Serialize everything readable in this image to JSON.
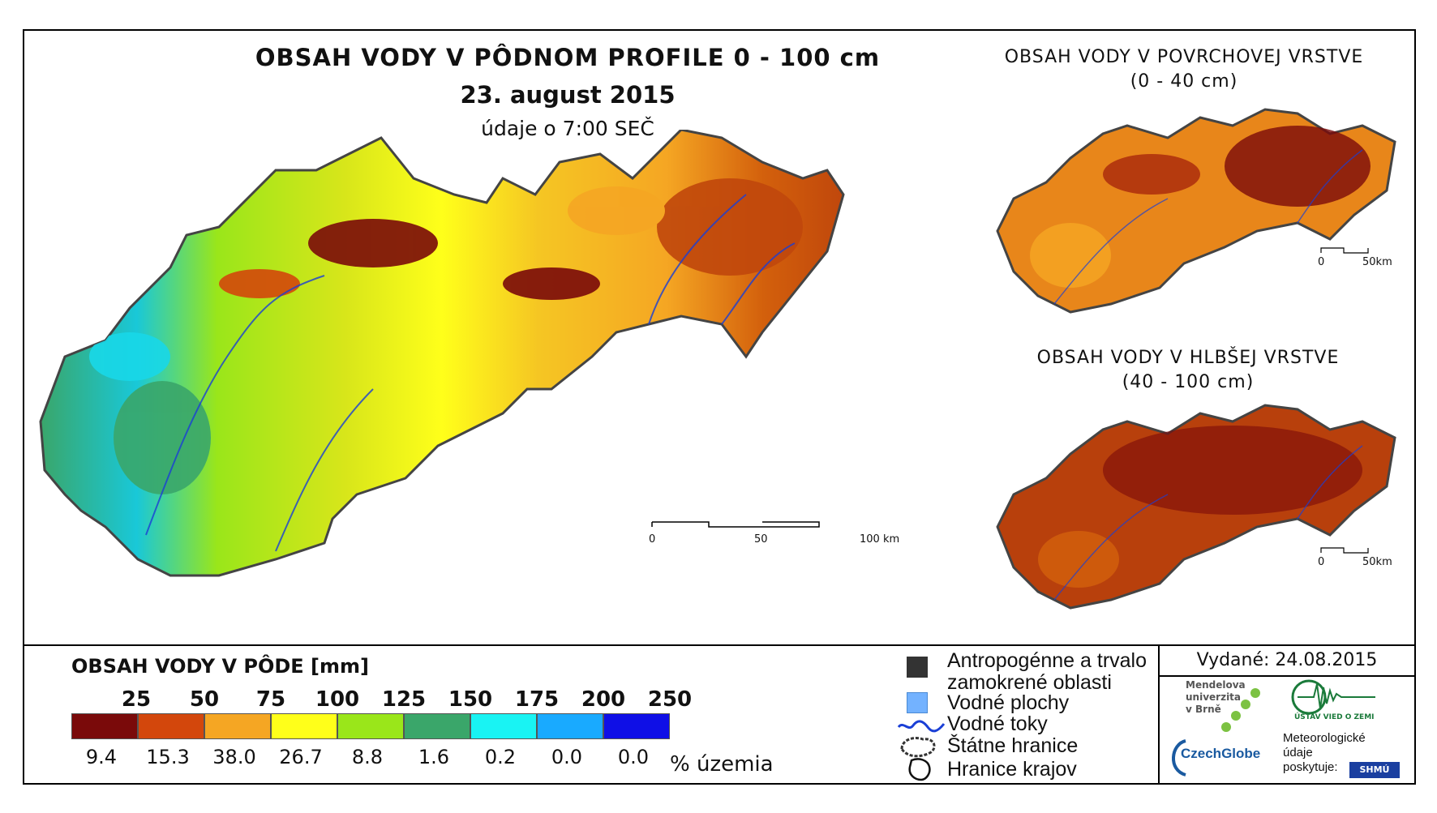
{
  "main_map": {
    "title": "OBSAH VODY V PÔDNOM PROFILE 0 - 100 cm",
    "date": "23. august 2015",
    "time": "údaje o 7:00 SEČ",
    "scalebar": {
      "labels": [
        "0",
        "50",
        "100 km"
      ]
    }
  },
  "inset_surface": {
    "title_line1": "OBSAH VODY V POVRCHOVEJ VRSTVE",
    "title_line2": "(0 - 40 cm)",
    "scalebar": {
      "labels": [
        "0",
        "50km"
      ]
    }
  },
  "inset_deep": {
    "title_line1": "OBSAH VODY V HLBŠEJ VRSTVE",
    "title_line2": "(40 - 100 cm)",
    "scalebar": {
      "labels": [
        "0",
        "50km"
      ]
    }
  },
  "legend": {
    "title": "OBSAH VODY V PÔDE [mm]",
    "thresholds": [
      "25",
      "50",
      "75",
      "100",
      "125",
      "150",
      "175",
      "200",
      "250"
    ],
    "classes": [
      {
        "color": "#7a0a0a",
        "percent": "9.4"
      },
      {
        "color": "#d3470c",
        "percent": "15.3"
      },
      {
        "color": "#f5a623",
        "percent": "38.0"
      },
      {
        "color": "#ffff1a",
        "percent": "26.7"
      },
      {
        "color": "#9ae61a",
        "percent": "8.8"
      },
      {
        "color": "#3aa66a",
        "percent": "1.6"
      },
      {
        "color": "#19f3f3",
        "percent": "0.2"
      },
      {
        "color": "#19aaff",
        "percent": "0.0"
      },
      {
        "color": "#0f0fe6",
        "percent": "0.0"
      }
    ],
    "percent_unit": "% územia",
    "symbols": {
      "anthropogenic_line1": "Antropogénne a trvalo",
      "anthropogenic_line2": "zamokrené oblasti",
      "water_bodies": "Vodné plochy",
      "streams": "Vodné toky",
      "state_border": "Štátne hranice",
      "region_border": "Hranice krajov"
    },
    "symbol_colors": {
      "anthropogenic": "#333333",
      "water_bodies": "#73b2ff",
      "streams": "#1a3fd6"
    }
  },
  "footer": {
    "issued": "Vydané: 24.08.2015",
    "mendel_line1": "Mendelova",
    "mendel_line2": "univerzita",
    "mendel_line3": "v Brně",
    "czechglobe": "CzechGlobe",
    "ustav": "ÚSTAV VIED O ZEMI",
    "meteo_line1": "Meteorologické",
    "meteo_line2": "údaje",
    "meteo_line3": "poskytuje:",
    "shmu": "SHMÚ"
  }
}
